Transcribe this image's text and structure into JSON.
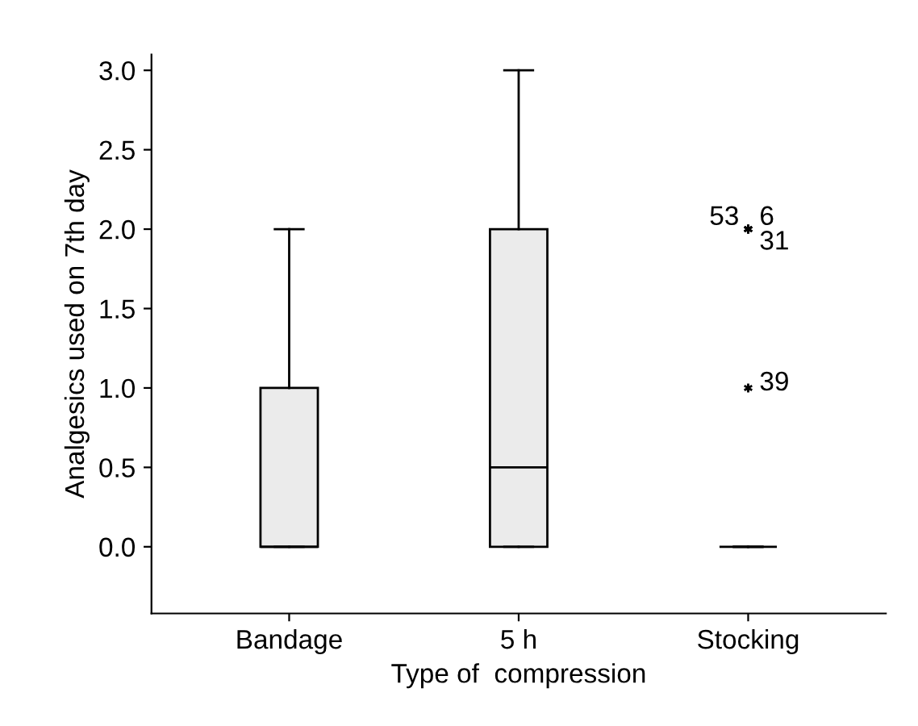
{
  "chart_data": {
    "type": "box",
    "xlabel": "Type of  compression",
    "ylabel": "Analgesics used on 7th day",
    "categories": [
      "Bandage",
      "5 h",
      "Stocking"
    ],
    "boxes": [
      {
        "low": 0,
        "q1": 0,
        "median": 0,
        "q3": 1,
        "high": 2
      },
      {
        "low": 0,
        "q1": 0,
        "median": 0.5,
        "q3": 2,
        "high": 3
      },
      {
        "low": 0,
        "q1": 0,
        "median": 0,
        "q3": 0,
        "high": 0,
        "outliers": [
          2,
          2,
          2,
          1
        ]
      }
    ],
    "color": "#ebebeb",
    "ylim": [
      -0.42,
      3.1
    ],
    "yticks": [
      {
        "value": 0,
        "label": "0.0"
      },
      {
        "value": 0.5,
        "label": "0.5"
      },
      {
        "value": 1,
        "label": "1.0"
      },
      {
        "value": 1.5,
        "label": "1.5"
      },
      {
        "value": 2,
        "label": "2.0"
      },
      {
        "value": 2.5,
        "label": "2.5"
      },
      {
        "value": 3,
        "label": "3.0"
      }
    ],
    "grid": false,
    "annotations": [
      "53",
      "6",
      "31",
      "39"
    ]
  }
}
